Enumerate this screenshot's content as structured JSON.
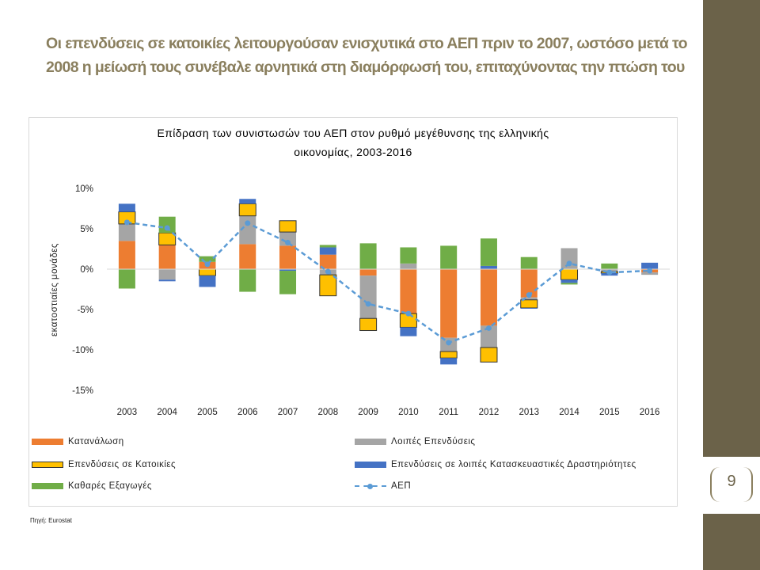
{
  "slide": {
    "title": "Οι επενδύσεις σε κατοικίες λειτουργούσαν ενισχυτικά στο ΑΕΠ πριν το 2007, ωστόσο μετά το 2008 η μείωσή τους συνέβαλε αρνητικά στη διαμόρφωσή του, επιταχύνοντας την πτώση του",
    "page_number": "9",
    "source": "Πηγή: Eurostat",
    "colors": {
      "title": "#8a7f5e",
      "sidebar": "#6b6249"
    }
  },
  "chart_data": {
    "type": "bar",
    "stacked": true,
    "title_line1": "Επίδραση των συνιστωσών του ΑΕΠ στον ρυθμό μεγέθυνσης της ελληνικής",
    "title_line2": "οικονομίας, 2003-2016",
    "ylabel": "εκατοστιαίες μονάδες",
    "xlabel": "",
    "ylim": [
      -15,
      10
    ],
    "yticks": [
      10,
      5,
      0,
      -5,
      -10,
      -15
    ],
    "ytick_labels": [
      "10%",
      "5%",
      "0%",
      "-5%",
      "-10%",
      "-15%"
    ],
    "grid": false,
    "legend_position": "bottom",
    "categories": [
      "2003",
      "2004",
      "2005",
      "2006",
      "2007",
      "2008",
      "2009",
      "2010",
      "2011",
      "2012",
      "2013",
      "2014",
      "2015",
      "2016"
    ],
    "series": [
      {
        "name": "Κατανάλωση",
        "color": "#ed7d31",
        "values": [
          3.5,
          3.0,
          0.9,
          3.1,
          2.9,
          1.8,
          -0.8,
          -5.5,
          -8.5,
          -7.0,
          -3.5,
          0.0,
          0.0,
          -0.4
        ]
      },
      {
        "name": "Λοιπές Επενδύσεις",
        "color": "#a5a5a5",
        "values": [
          2.1,
          -1.3,
          0.0,
          3.5,
          1.7,
          -0.7,
          -5.3,
          0.7,
          -1.7,
          -2.7,
          -0.3,
          2.6,
          -0.3,
          -0.3
        ]
      },
      {
        "name": "Επενδύσεις σε Κατοικίες",
        "color": "#ffc000",
        "values": [
          1.5,
          1.5,
          -0.8,
          1.5,
          1.4,
          -2.6,
          -1.5,
          -1.7,
          -0.8,
          -1.8,
          -1.0,
          -1.3,
          -0.2,
          0.0
        ]
      },
      {
        "name": "Επενδύσεις σε λοιπές Κατασκευαστικές Δραστηριότητες",
        "color": "#4472c4",
        "values": [
          1.0,
          -0.2,
          -1.4,
          0.6,
          -0.2,
          0.9,
          0.0,
          -1.1,
          -0.8,
          0.4,
          -0.1,
          -0.4,
          -0.3,
          0.8
        ]
      },
      {
        "name": "Καθαρές Εξαγωγές",
        "color": "#70ad47",
        "values": [
          -2.4,
          2.0,
          0.7,
          -2.8,
          -2.9,
          0.3,
          3.2,
          2.0,
          2.9,
          3.4,
          1.5,
          -0.2,
          0.7,
          0.0
        ]
      }
    ],
    "line": {
      "name": "ΑΕΠ",
      "color": "#5b9bd5",
      "values": [
        5.8,
        5.1,
        0.6,
        5.7,
        3.3,
        -0.3,
        -4.3,
        -5.5,
        -9.1,
        -7.3,
        -3.2,
        0.7,
        -0.4,
        -0.2
      ]
    }
  }
}
